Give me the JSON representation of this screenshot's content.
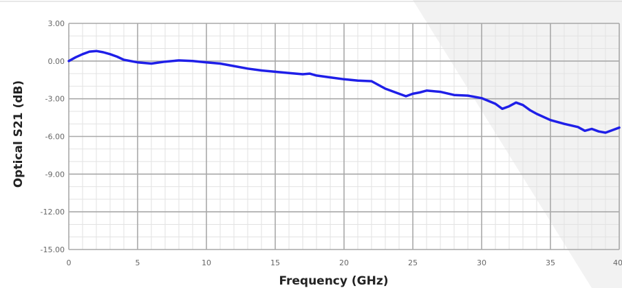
{
  "chart_data": {
    "type": "line",
    "xlabel": "Frequency (GHz)",
    "ylabel": "Optical S21 (dB)",
    "xlim": [
      0,
      40
    ],
    "ylim": [
      -15,
      3
    ],
    "xticks": [
      0,
      5,
      10,
      15,
      20,
      25,
      30,
      35,
      40
    ],
    "xtick_labels": [
      "0",
      "5",
      "10",
      "15",
      "20",
      "25",
      "30",
      "35",
      "40"
    ],
    "yticks": [
      3,
      0,
      -3,
      -6,
      -9,
      -12,
      -15
    ],
    "ytick_labels": [
      "3.00",
      "0.00",
      "-3.00",
      "-6.00",
      "-9.00",
      "-12.00",
      "-15.00"
    ],
    "grid": true,
    "line_color": "#1f1fe8",
    "series": [
      {
        "x": [
          0,
          0.5,
          1,
          1.5,
          2,
          2.5,
          3,
          3.5,
          4,
          5,
          6,
          7,
          8,
          9,
          10,
          11,
          12,
          13,
          14,
          15,
          16,
          17,
          17.5,
          18,
          19,
          20,
          21,
          22,
          23,
          24,
          24.5,
          25,
          25.5,
          26,
          27,
          28,
          29,
          30,
          31,
          31.5,
          32,
          32.5,
          33,
          33.5,
          34,
          35,
          36,
          37,
          37.5,
          38,
          38.5,
          39,
          39.5,
          40
        ],
        "y": [
          0.0,
          0.3,
          0.55,
          0.75,
          0.8,
          0.7,
          0.55,
          0.35,
          0.1,
          -0.1,
          -0.2,
          -0.05,
          0.05,
          0.0,
          -0.1,
          -0.2,
          -0.4,
          -0.6,
          -0.75,
          -0.85,
          -0.95,
          -1.05,
          -1.0,
          -1.15,
          -1.3,
          -1.45,
          -1.55,
          -1.6,
          -2.2,
          -2.6,
          -2.8,
          -2.6,
          -2.5,
          -2.35,
          -2.45,
          -2.7,
          -2.75,
          -2.95,
          -3.4,
          -3.8,
          -3.6,
          -3.3,
          -3.5,
          -3.9,
          -4.2,
          -4.7,
          -5.0,
          -5.25,
          -5.55,
          -5.4,
          -5.6,
          -5.7,
          -5.5,
          -5.3
        ]
      }
    ]
  }
}
